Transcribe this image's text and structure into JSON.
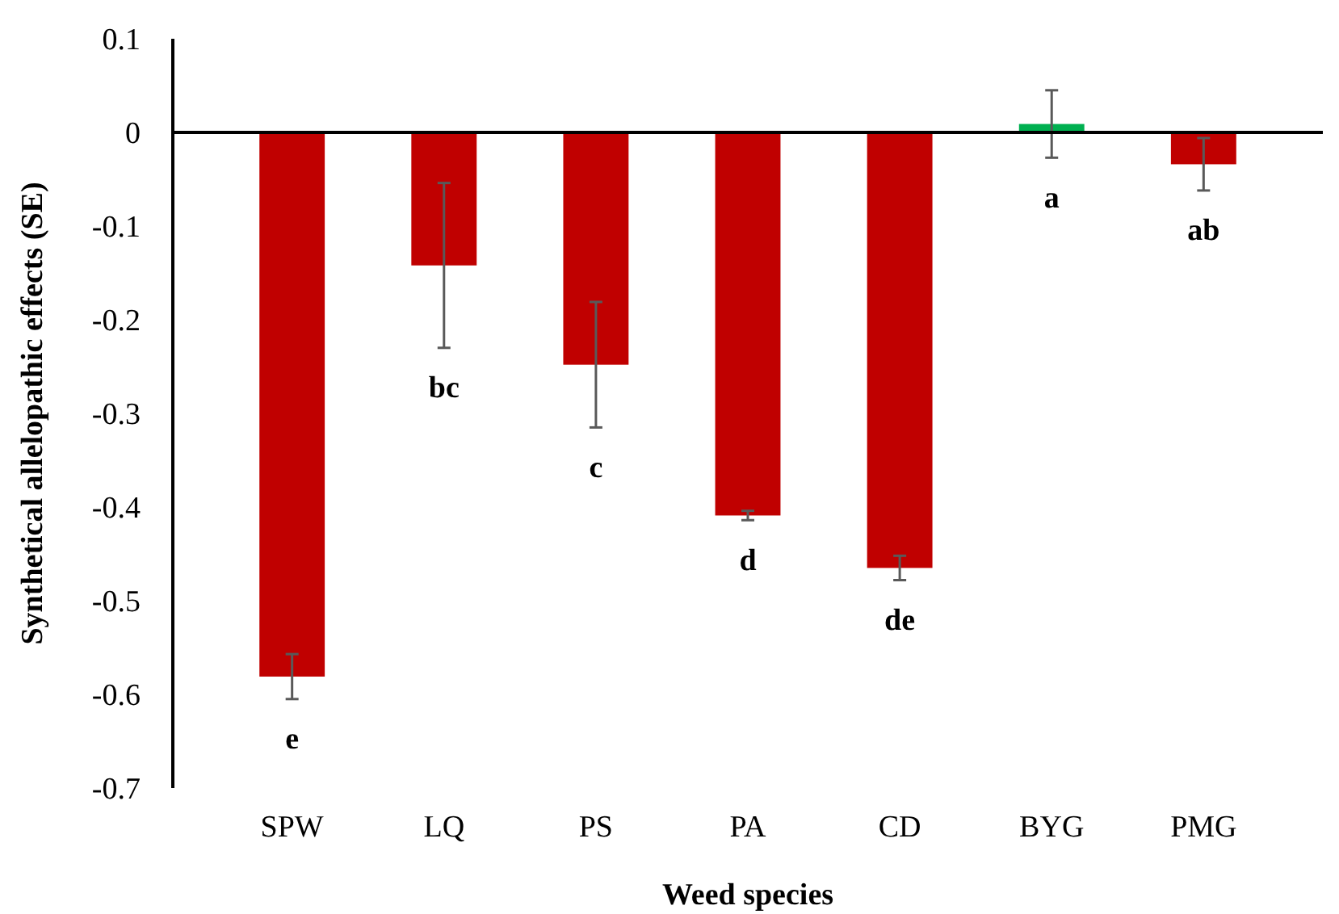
{
  "chart_data": {
    "type": "bar",
    "xlabel": "Weed species",
    "ylabel": "Synthetical allelopathic effects (SE)",
    "categories": [
      "SPW",
      "LQ",
      "PS",
      "PA",
      "CD",
      "BYG",
      "PMG"
    ],
    "values": [
      -0.581,
      -0.142,
      -0.248,
      -0.409,
      -0.465,
      0.009,
      -0.034
    ],
    "colors": [
      "#c00000",
      "#c00000",
      "#c00000",
      "#c00000",
      "#c00000",
      "#00b050",
      "#c00000"
    ],
    "errors": [
      0.024,
      0.088,
      0.067,
      0.005,
      0.013,
      0.036,
      0.028
    ],
    "ylim": [
      -0.7,
      0.1
    ],
    "yticks": [
      -0.7,
      -0.6,
      -0.5,
      -0.4,
      -0.3,
      -0.2,
      -0.1,
      0,
      0.1
    ],
    "annotations": [
      "e",
      "bc",
      "c",
      "d",
      "de",
      "a",
      "ab"
    ]
  }
}
